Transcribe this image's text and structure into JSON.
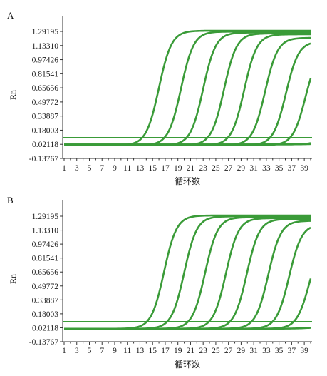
{
  "chart_data": [
    {
      "type": "line",
      "panel_label": "A",
      "xlabel": "循环数",
      "ylabel": "Rn",
      "xlim": [
        1,
        40
      ],
      "ylim": [
        -0.13767,
        1.29195
      ],
      "x_ticks": [
        "1",
        "3",
        "5",
        "7",
        "9",
        "11",
        "13",
        "15",
        "17",
        "19",
        "21",
        "23",
        "25",
        "27",
        "29",
        "31",
        "33",
        "35",
        "37",
        "39"
      ],
      "y_ticks": [
        "1.29195",
        "1.13310",
        "0.97426",
        "0.81541",
        "0.65656",
        "0.49772",
        "0.33887",
        "0.18003",
        "0.02118",
        "-0.13767"
      ],
      "threshold": 0.095,
      "line_color": "#3a9b38",
      "series": [
        {
          "baseline": 0.01,
          "plateau": 1.3,
          "midpoint": 16.0,
          "slope": 1.0
        },
        {
          "baseline": 0.01,
          "plateau": 1.29,
          "midpoint": 19.5,
          "slope": 1.0
        },
        {
          "baseline": 0.01,
          "plateau": 1.28,
          "midpoint": 23.0,
          "slope": 1.0
        },
        {
          "baseline": 0.01,
          "plateau": 1.27,
          "midpoint": 26.3,
          "slope": 1.0
        },
        {
          "baseline": 0.01,
          "plateau": 1.26,
          "midpoint": 29.5,
          "slope": 1.0
        },
        {
          "baseline": 0.01,
          "plateau": 1.22,
          "midpoint": 32.8,
          "slope": 1.0
        },
        {
          "baseline": 0.01,
          "plateau": 1.18,
          "midpoint": 36.1,
          "slope": 1.0
        },
        {
          "baseline": 0.01,
          "plateau": 1.1,
          "midpoint": 39.2,
          "slope": 1.0
        },
        {
          "baseline": 0.02,
          "plateau": 0.7,
          "midpoint": 43.8,
          "slope": 1.0
        },
        {
          "baseline": 0.02,
          "plateau": 0.3,
          "midpoint": 47.0,
          "slope": 0.6
        }
      ]
    },
    {
      "type": "line",
      "panel_label": "B",
      "xlabel": "循环数",
      "ylabel": "Rn",
      "xlim": [
        1,
        40
      ],
      "ylim": [
        -0.13767,
        1.29195
      ],
      "x_ticks": [
        "1",
        "3",
        "5",
        "7",
        "9",
        "11",
        "13",
        "15",
        "17",
        "19",
        "21",
        "23",
        "25",
        "27",
        "29",
        "31",
        "33",
        "35",
        "37",
        "39"
      ],
      "y_ticks": [
        "1.29195",
        "1.13310",
        "0.97426",
        "0.81541",
        "0.65656",
        "0.49772",
        "0.33887",
        "0.18003",
        "0.02118",
        "-0.13767"
      ],
      "threshold": 0.09,
      "line_color": "#3a9b38",
      "series": [
        {
          "baseline": 0.01,
          "plateau": 1.3,
          "midpoint": 16.8,
          "slope": 1.0
        },
        {
          "baseline": 0.01,
          "plateau": 1.29,
          "midpoint": 20.0,
          "slope": 1.0
        },
        {
          "baseline": 0.01,
          "plateau": 1.28,
          "midpoint": 23.3,
          "slope": 1.0
        },
        {
          "baseline": 0.01,
          "plateau": 1.27,
          "midpoint": 26.6,
          "slope": 1.0
        },
        {
          "baseline": 0.01,
          "plateau": 1.26,
          "midpoint": 29.9,
          "slope": 1.0
        },
        {
          "baseline": 0.01,
          "plateau": 1.24,
          "midpoint": 33.3,
          "slope": 1.0
        },
        {
          "baseline": 0.01,
          "plateau": 1.2,
          "midpoint": 36.6,
          "slope": 1.0
        },
        {
          "baseline": 0.01,
          "plateau": 1.05,
          "midpoint": 39.8,
          "slope": 1.0
        },
        {
          "baseline": 0.01,
          "plateau": 0.1,
          "midpoint": 44.0,
          "slope": 0.5
        }
      ]
    }
  ]
}
